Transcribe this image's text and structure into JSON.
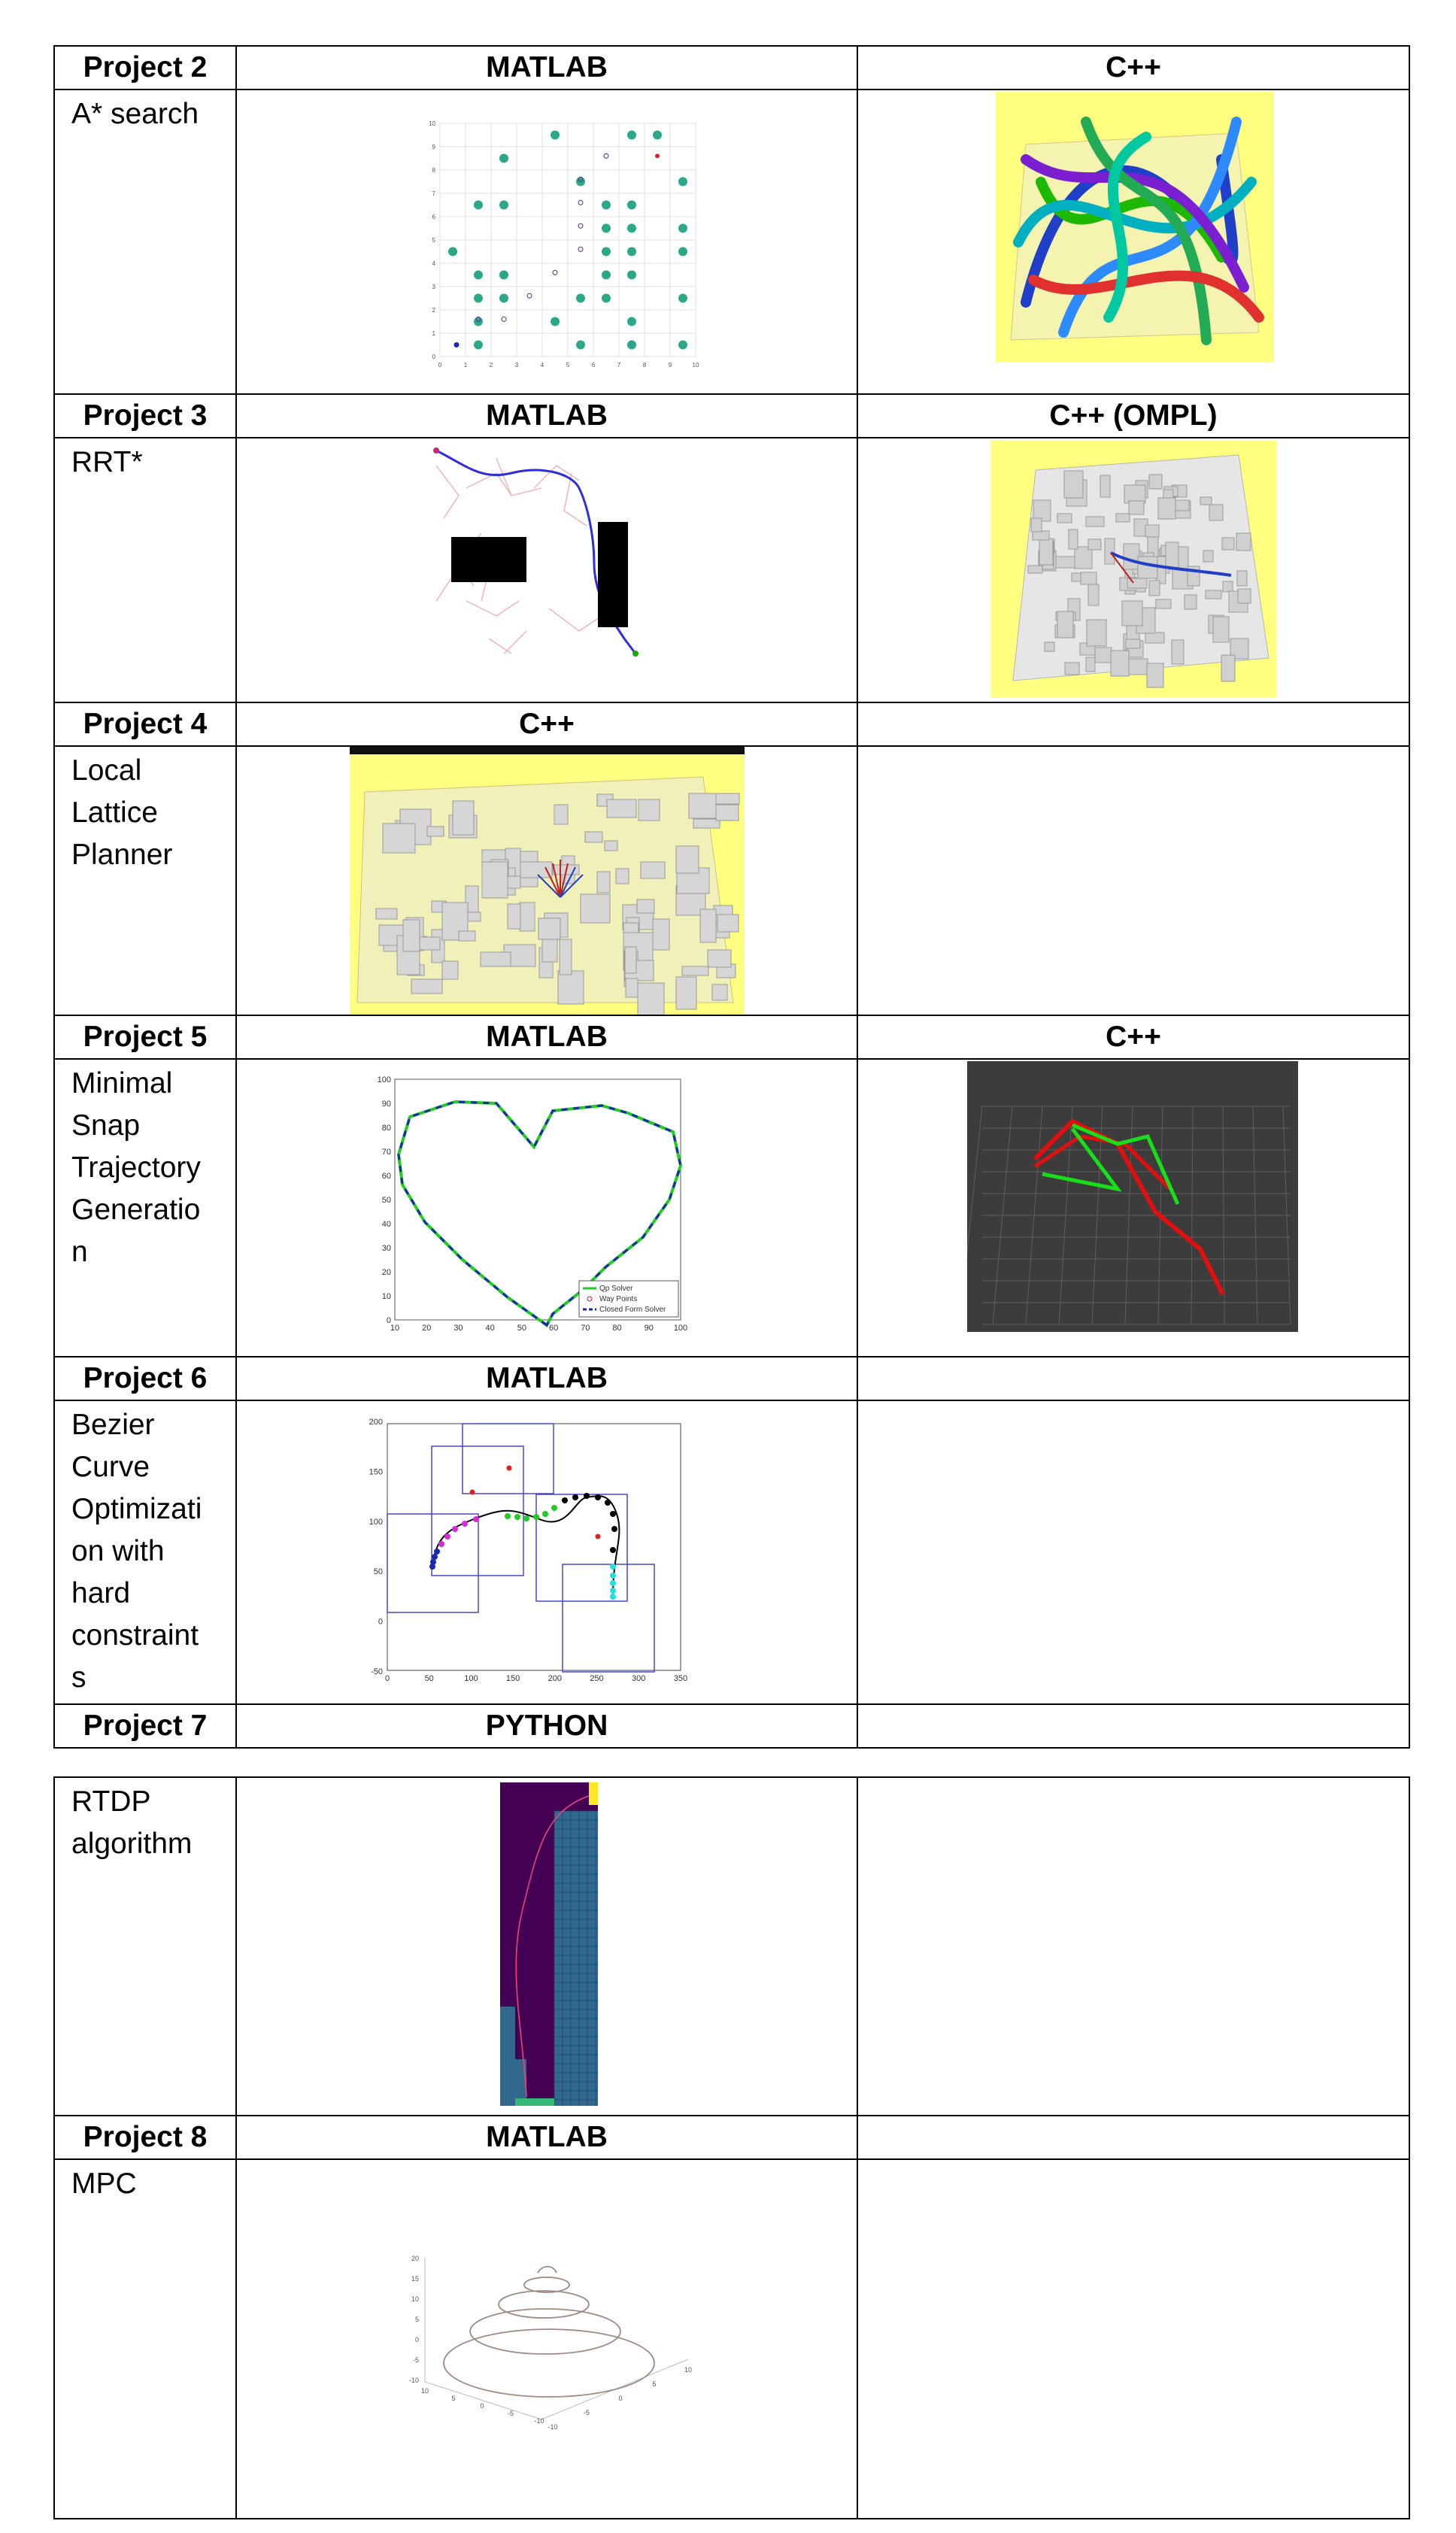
{
  "colors": {
    "accent_yellow": "#ffff80",
    "teal": "#2aa889",
    "dark_plot": "#3c3c3c",
    "purple": "#440154",
    "rtdp_blue": "#31688e"
  },
  "table1": {
    "rows": [
      {
        "project": "Project 2",
        "col2": "MATLAB",
        "col3": "C++",
        "task": "A* search"
      },
      {
        "project": "Project 3",
        "col2": "MATLAB",
        "col3": "C++ (OMPL)",
        "task": "RRT*"
      },
      {
        "project": "Project 4",
        "col2": "C++",
        "col3": "",
        "task_lines": [
          "Local",
          "Lattice",
          "Planner"
        ]
      },
      {
        "project": "Project 5",
        "col2": "MATLAB",
        "col3": "C++",
        "task_lines": [
          "Minimal",
          "Snap",
          "Trajectory",
          "Generatio",
          "n"
        ]
      },
      {
        "project": "Project 6",
        "col2": "MATLAB",
        "col3": "",
        "task_lines": [
          "Bezier",
          "Curve",
          "Optimizati",
          "on with",
          "hard",
          "constraint",
          "s"
        ]
      },
      {
        "project": "Project 7",
        "col2": "PYTHON",
        "col3": ""
      }
    ]
  },
  "table2": {
    "rows": [
      {
        "task_lines": [
          "RTDP",
          "algorithm"
        ]
      },
      {
        "project": "Project 8",
        "col2": "MATLAB",
        "col3": ""
      },
      {
        "task": "MPC"
      }
    ]
  },
  "figures": {
    "astar": {
      "x_ticks": [
        "0",
        "1",
        "2",
        "3",
        "4",
        "5",
        "6",
        "7",
        "8",
        "9",
        "10"
      ],
      "y_ticks": [
        "0",
        "1",
        "2",
        "3",
        "4",
        "5",
        "6",
        "7",
        "8",
        "9",
        "10"
      ]
    },
    "minsnap": {
      "x_ticks": [
        "10",
        "20",
        "30",
        "40",
        "50",
        "60",
        "70",
        "80",
        "90",
        "100"
      ],
      "y_ticks": [
        "0",
        "10",
        "20",
        "30",
        "40",
        "50",
        "60",
        "70",
        "80",
        "90",
        "100"
      ],
      "legend": [
        "Qp Solver",
        "Way Points",
        "Closed Form Solver"
      ]
    },
    "bezier": {
      "x_ticks": [
        "0",
        "50",
        "100",
        "150",
        "200",
        "250",
        "300",
        "350"
      ],
      "y_ticks": [
        "-50",
        "0",
        "50",
        "100",
        "150",
        "200"
      ]
    },
    "mpc": {
      "z_ticks": [
        "20",
        "15",
        "10",
        "5",
        "0",
        "-5",
        "-10"
      ],
      "x_ticks": [
        "10",
        "5",
        "0",
        "-5",
        "-10"
      ],
      "y_ticks": [
        "-10",
        "-5",
        "0",
        "5",
        "10"
      ]
    }
  }
}
